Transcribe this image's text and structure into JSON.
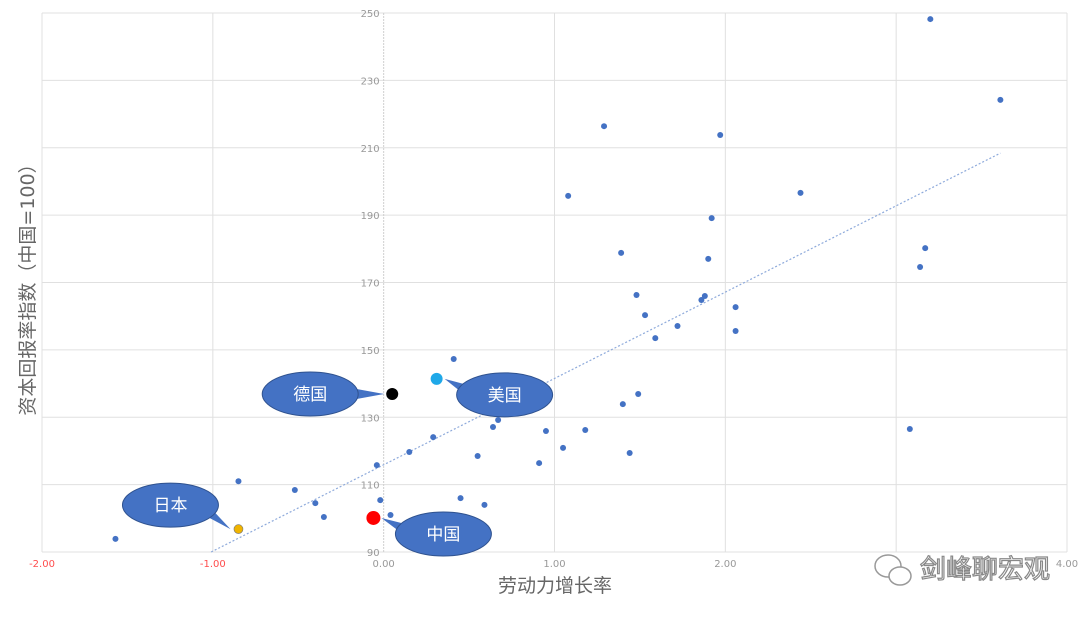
{
  "chart_data": {
    "type": "scatter",
    "title": "",
    "xlabel": "劳动力增长率",
    "ylabel": "资本回报率指数（中国=100）",
    "xlim": [
      -2,
      4
    ],
    "ylim": [
      90,
      250
    ],
    "grid": true,
    "x_ticks": [
      {
        "value": -2,
        "label": "-2.00",
        "color": "#ff4d4d"
      },
      {
        "value": -1,
        "label": "-1.00",
        "color": "#ff4d4d"
      },
      {
        "value": 0,
        "label": "0.00",
        "color": "#999999"
      },
      {
        "value": 1,
        "label": "1.00",
        "color": "#999999"
      },
      {
        "value": 2,
        "label": "2.00",
        "color": "#999999"
      },
      {
        "value": 3,
        "label": "",
        "color": "#999999"
      },
      {
        "value": 4,
        "label": "4.00",
        "color": "#999999"
      }
    ],
    "y_ticks": [
      90,
      110,
      130,
      150,
      170,
      190,
      210,
      230,
      250
    ],
    "point_color": "#4472c4",
    "points": [
      [
        -1.57,
        93.9
      ],
      [
        -0.85,
        111
      ],
      [
        -0.52,
        108.4
      ],
      [
        -0.4,
        104.5
      ],
      [
        -0.35,
        100.4
      ],
      [
        -0.04,
        115.8
      ],
      [
        -0.02,
        105.4
      ],
      [
        0.04,
        101
      ],
      [
        0.15,
        119.7
      ],
      [
        0.29,
        124.1
      ],
      [
        0.41,
        147.3
      ],
      [
        0.45,
        106
      ],
      [
        0.55,
        118.5
      ],
      [
        0.59,
        104
      ],
      [
        0.64,
        127.1
      ],
      [
        0.67,
        129.2
      ],
      [
        0.91,
        116.4
      ],
      [
        0.95,
        125.9
      ],
      [
        1.05,
        120.9
      ],
      [
        1.08,
        195.7
      ],
      [
        1.18,
        126.2
      ],
      [
        1.29,
        216.4
      ],
      [
        1.39,
        178.8
      ],
      [
        1.4,
        133.9
      ],
      [
        1.44,
        119.4
      ],
      [
        1.48,
        166.3
      ],
      [
        1.49,
        136.9
      ],
      [
        1.53,
        160.3
      ],
      [
        1.59,
        153.5
      ],
      [
        1.72,
        157.1
      ],
      [
        1.86,
        164.8
      ],
      [
        1.88,
        166
      ],
      [
        1.9,
        177
      ],
      [
        1.92,
        189.1
      ],
      [
        1.97,
        213.8
      ],
      [
        2.06,
        162.7
      ],
      [
        2.06,
        155.6
      ],
      [
        2.44,
        196.6
      ],
      [
        3.08,
        126.5
      ],
      [
        3.14,
        174.6
      ],
      [
        3.17,
        180.2
      ],
      [
        3.2,
        248.2
      ],
      [
        3.61,
        224.2
      ]
    ],
    "highlighted": [
      {
        "label": "日本",
        "x": -0.85,
        "y": 96.8,
        "color": "#f0b400",
        "callout": "upper-left"
      },
      {
        "label": "中国",
        "x": -0.06,
        "y": 100.1,
        "color": "#ff0000",
        "callout": "lower-right"
      },
      {
        "label": "德国",
        "x": 0.05,
        "y": 136.9,
        "color": "#000000",
        "callout": "left"
      },
      {
        "label": "美国",
        "x": 0.31,
        "y": 141.4,
        "color": "#1fa8e8",
        "callout": "right"
      }
    ],
    "trendline": {
      "type": "linear",
      "from": [
        -1.01,
        90
      ],
      "to": [
        3.61,
        208.4
      ],
      "color": "#8eaadb"
    },
    "callout_color": "#4472c4"
  },
  "watermark": {
    "text": "剑峰聊宏观",
    "icon": "wechat-icon"
  }
}
